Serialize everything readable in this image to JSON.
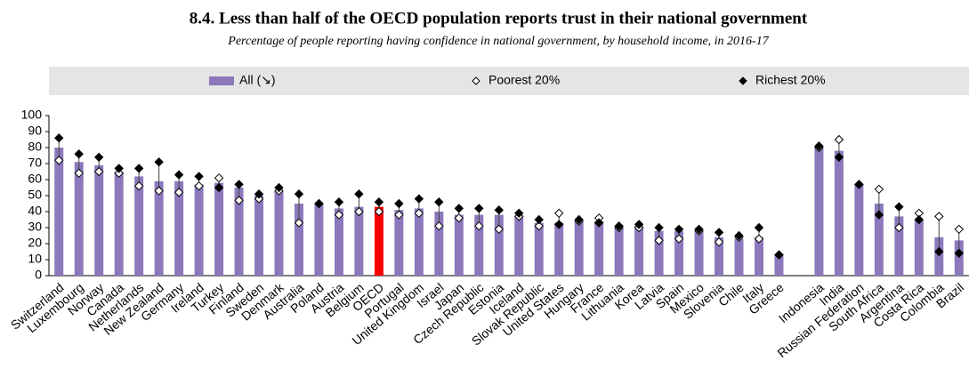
{
  "chart_data": {
    "type": "bar",
    "title": "8.4. Less than half of the OECD population reports trust in their national government",
    "subtitle": "Percentage of people reporting having confidence in national government, by household income, in 2016-17",
    "categories": [
      "Switzerland",
      "Luxembourg",
      "Norway",
      "Canada",
      "Netherlands",
      "New Zealand",
      "Germany",
      "Ireland",
      "Turkey",
      "Finland",
      "Sweden",
      "Denmark",
      "Australia",
      "Poland",
      "Austria",
      "Belgium",
      "OECD",
      "Portugal",
      "United Kingdom",
      "Israel",
      "Japan",
      "Czech Republic",
      "Estonia",
      "Iceland",
      "Slovak Republic",
      "United States",
      "Hungary",
      "France",
      "Lithuania",
      "Korea",
      "Latvia",
      "Spain",
      "Mexico",
      "Slovenia",
      "Chile",
      "Italy",
      "Greece",
      null,
      "Indonesia",
      "India",
      "Russian Federation",
      "South Africa",
      "Argentina",
      "Costa Rica",
      "Colombia",
      "Brazil"
    ],
    "series": [
      {
        "name": "All (↘)",
        "color": "#8c79bc",
        "marker": "bar",
        "values": [
          80,
          71,
          69,
          65,
          62,
          59,
          59,
          57,
          58,
          55,
          50,
          53,
          45,
          45,
          42,
          43,
          43,
          41,
          42,
          40,
          38,
          38,
          38,
          37,
          33,
          33,
          34,
          34,
          30,
          31,
          28,
          28,
          28,
          24,
          23,
          24,
          13,
          null,
          81,
          78,
          57,
          45,
          37,
          35,
          24,
          22
        ]
      },
      {
        "name": "Poorest 20%",
        "color": "#ffffff",
        "marker": "diamond",
        "values": [
          72,
          64,
          65,
          64,
          56,
          53,
          52,
          56,
          61,
          47,
          48,
          53,
          33,
          45,
          38,
          40,
          40,
          38,
          39,
          31,
          36,
          31,
          29,
          37,
          31,
          39,
          34,
          36,
          30,
          30,
          22,
          23,
          28,
          21,
          24,
          23,
          13,
          null,
          80,
          85,
          57,
          54,
          30,
          39,
          37,
          29
        ]
      },
      {
        "name": "Richest 20%",
        "color": "#000000",
        "marker": "diamond",
        "values": [
          86,
          76,
          74,
          67,
          67,
          71,
          63,
          62,
          55,
          57,
          51,
          55,
          51,
          45,
          46,
          51,
          46,
          45,
          48,
          46,
          42,
          42,
          41,
          39,
          35,
          32,
          35,
          33,
          31,
          32,
          30,
          29,
          29,
          27,
          25,
          30,
          13,
          null,
          81,
          74,
          57,
          38,
          43,
          35,
          15,
          14
        ]
      }
    ],
    "highlight_category": "OECD",
    "highlight_color": "#ff0000",
    "ylim": [
      0,
      100
    ],
    "yticks": [
      0,
      10,
      20,
      30,
      40,
      50,
      60,
      70,
      80,
      90,
      100
    ]
  }
}
